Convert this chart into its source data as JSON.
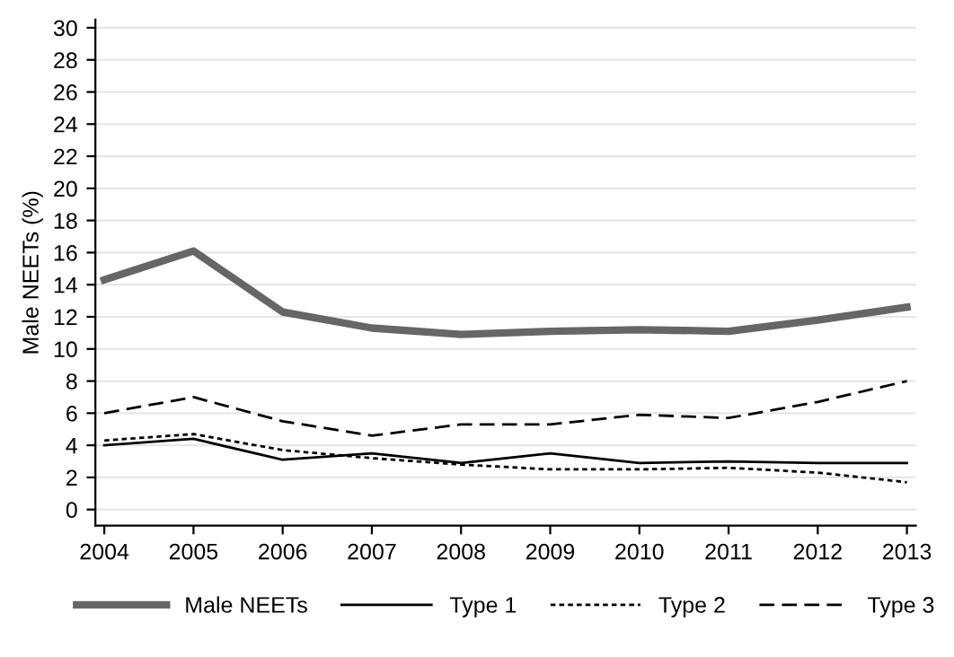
{
  "chart_data": {
    "type": "line",
    "ylabel": "Male NEETs (%)",
    "x": [
      2004,
      2005,
      2006,
      2007,
      2008,
      2009,
      2010,
      2011,
      2012,
      2013
    ],
    "xlim": [
      2003.9,
      2013.1
    ],
    "xticks": [
      2004,
      2005,
      2006,
      2007,
      2008,
      2009,
      2010,
      2011,
      2012,
      2013
    ],
    "ylim": [
      -1,
      30.5
    ],
    "yticks": [
      0,
      2,
      4,
      6,
      8,
      10,
      12,
      14,
      16,
      18,
      20,
      22,
      24,
      26,
      28,
      30
    ],
    "grid": "y",
    "legend": "bottom",
    "marker": "none",
    "series": [
      {
        "name": "Male NEETs",
        "color": "#666666",
        "line_style": "solid",
        "values": [
          14.3,
          16.1,
          12.3,
          11.3,
          10.9,
          11.1,
          11.2,
          11.1,
          11.8,
          12.6
        ]
      },
      {
        "name": "Type 1",
        "color": "#000000",
        "line_style": "solid",
        "values": [
          4.0,
          4.4,
          3.1,
          3.5,
          2.9,
          3.5,
          2.9,
          3.0,
          2.9,
          2.9
        ]
      },
      {
        "name": "Type 2",
        "color": "#000000",
        "line_style": "dotted",
        "values": [
          4.3,
          4.7,
          3.7,
          3.2,
          2.8,
          2.5,
          2.5,
          2.6,
          2.3,
          1.7
        ]
      },
      {
        "name": "Type 3",
        "color": "#000000",
        "line_style": "dashed",
        "values": [
          6.0,
          7.0,
          5.5,
          4.6,
          5.3,
          5.3,
          5.9,
          5.7,
          6.7,
          8.0
        ]
      }
    ]
  }
}
